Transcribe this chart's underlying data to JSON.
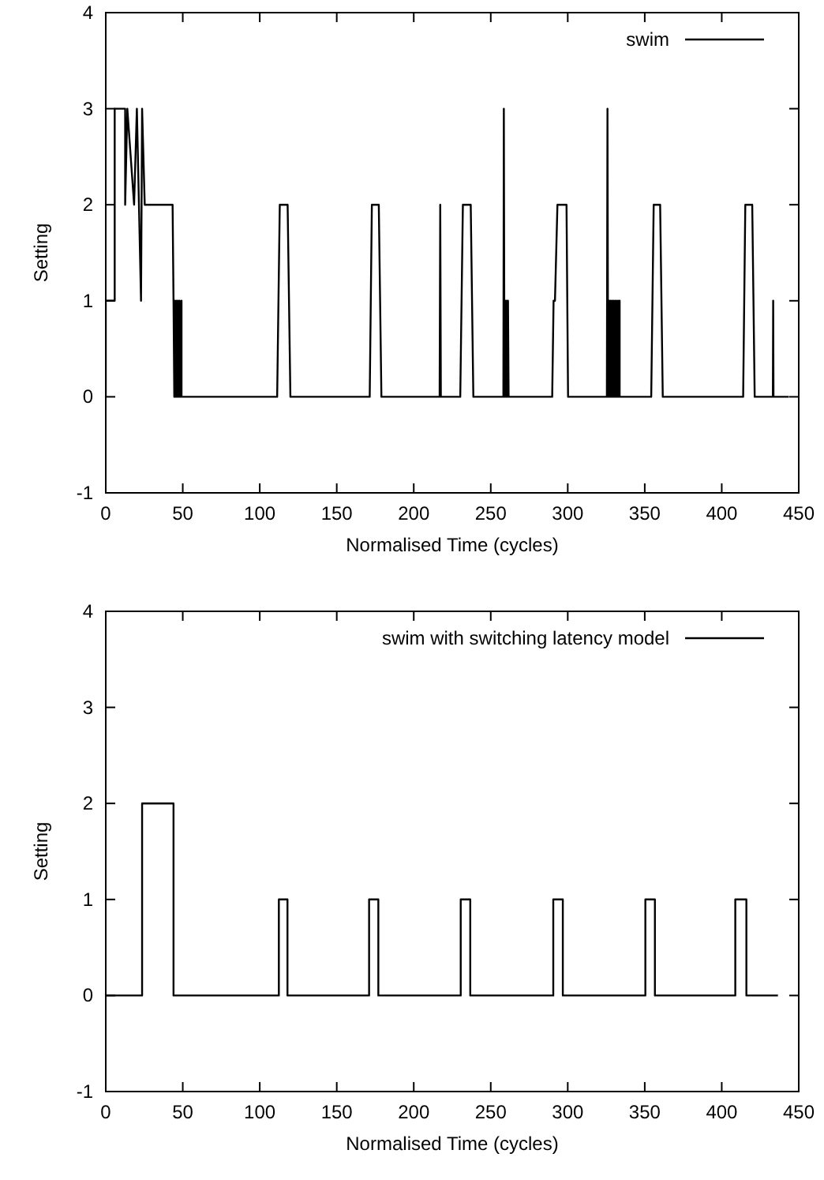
{
  "chart_data": [
    {
      "type": "line",
      "xlabel": "Normalised Time (cycles)",
      "ylabel": "Setting",
      "xlim": [
        0,
        450
      ],
      "ylim": [
        -1,
        4
      ],
      "xticks": [
        0,
        50,
        100,
        150,
        200,
        250,
        300,
        350,
        400,
        450
      ],
      "yticks": [
        -1,
        0,
        1,
        2,
        3,
        4
      ],
      "legend": "top right",
      "line_style": "solid",
      "series": [
        {
          "name": "swim",
          "color": "#000000",
          "x": [
            0,
            0,
            5.8,
            5.8,
            12.6,
            12.6,
            14,
            18.4,
            20.2,
            22.9,
            23.6,
            25.3,
            43.4,
            44,
            44.5,
            45,
            45.5,
            46,
            46.5,
            47,
            47.5,
            48,
            48.5,
            49.2,
            49.2,
            111.3,
            113,
            118.1,
            119.9,
            171.4,
            172.8,
            177.3,
            179,
            216.8,
            217.2,
            217.6,
            230.2,
            231.9,
            237,
            238.7,
            258.2,
            258.5,
            258.9,
            259.4,
            259.8,
            260.3,
            260.7,
            261.2,
            261.6,
            289.9,
            290.8,
            291.7,
            293.3,
            299.2,
            300.2,
            325.4,
            325.8,
            326.2,
            326.7,
            327.2,
            327.7,
            328.2,
            328.7,
            329.2,
            329.7,
            330.2,
            330.7,
            331.2,
            331.7,
            332.2,
            332.7,
            333.2,
            333.7,
            333.7,
            354.2,
            355.8,
            360,
            361.7,
            413.9,
            415.3,
            419.8,
            421.4,
            433.2,
            433.4,
            433.6,
            443.6
          ],
          "values": [
            0,
            1,
            1,
            3,
            3,
            2,
            3,
            2,
            3,
            1,
            3,
            2,
            2,
            1,
            0,
            1,
            0,
            1,
            0,
            1,
            0,
            1,
            0,
            1,
            0,
            0,
            2,
            2,
            0,
            0,
            2,
            2,
            0,
            0,
            2,
            0,
            0,
            2,
            2,
            0,
            0,
            3,
            0,
            1,
            0,
            1,
            0,
            1,
            0,
            0,
            1,
            1,
            2,
            2,
            0,
            0,
            3,
            0,
            1,
            0,
            1,
            0,
            1,
            0,
            1,
            0,
            1,
            0,
            1,
            0,
            1,
            0,
            1,
            0,
            0,
            2,
            2,
            0,
            0,
            2,
            2,
            0,
            0,
            1,
            0,
            0
          ]
        }
      ]
    },
    {
      "type": "line",
      "xlabel": "Normalised Time (cycles)",
      "ylabel": "Setting",
      "xlim": [
        0,
        450
      ],
      "ylim": [
        -1,
        4
      ],
      "xticks": [
        0,
        50,
        100,
        150,
        200,
        250,
        300,
        350,
        400,
        450
      ],
      "yticks": [
        -1,
        0,
        1,
        2,
        3,
        4
      ],
      "legend": "top right",
      "line_style": "solid",
      "series": [
        {
          "name": "swim with switching latency model",
          "color": "#000000",
          "x": [
            0,
            23.6,
            23.6,
            44,
            44,
            112.4,
            112.4,
            118,
            118,
            171,
            171,
            177,
            177,
            230.5,
            230.5,
            236.7,
            236.7,
            290.6,
            290.6,
            296.8,
            296.8,
            350.4,
            350.4,
            356.6,
            356.6,
            408.8,
            408.8,
            416,
            416,
            436.5
          ],
          "values": [
            0,
            0,
            2,
            2,
            0,
            0,
            1,
            1,
            0,
            0,
            1,
            1,
            0,
            0,
            1,
            1,
            0,
            0,
            1,
            1,
            0,
            0,
            1,
            1,
            0,
            0,
            1,
            1,
            0,
            0
          ]
        }
      ]
    }
  ]
}
